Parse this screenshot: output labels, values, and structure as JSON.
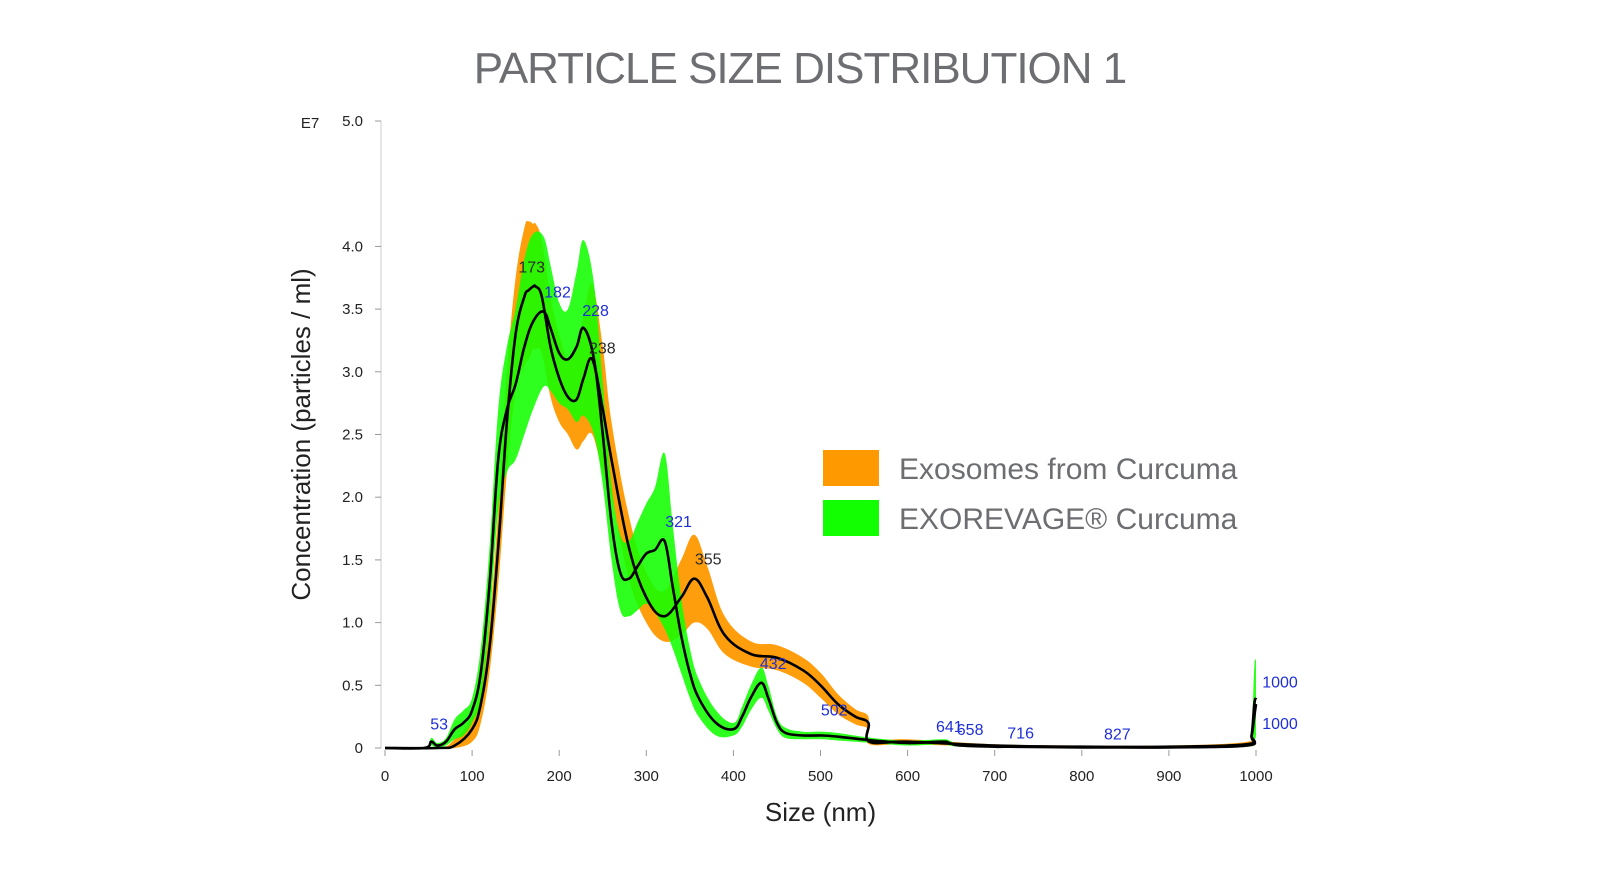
{
  "title": "PARTICLE SIZE DISTRIBUTION 1",
  "chart_data": {
    "type": "line",
    "title": "PARTICLE SIZE DISTRIBUTION 1",
    "xlabel": "Size (nm)",
    "ylabel": "Concentration (particles / ml)",
    "y_multiplier_label": "E7",
    "xlim": [
      0,
      1000
    ],
    "ylim": [
      0,
      5.0
    ],
    "x_ticks": [
      0,
      100,
      200,
      300,
      400,
      500,
      600,
      700,
      800,
      900,
      1000
    ],
    "y_ticks": [
      0,
      0.5,
      1.0,
      1.5,
      2.0,
      2.5,
      3.0,
      3.5,
      4.0,
      5.0
    ],
    "y_tick_labels": [
      "0",
      "0.5",
      "1.0",
      "1.5",
      "2.0",
      "2.5",
      "3.0",
      "3.5",
      "4.0",
      "5.0"
    ],
    "legend_position": "right",
    "series": [
      {
        "name": "Exosomes from Curcuma",
        "color": "#ff9900",
        "x": [
          0,
          60,
          80,
          100,
          110,
          120,
          130,
          140,
          150,
          160,
          165,
          170,
          173,
          180,
          190,
          200,
          210,
          220,
          228,
          238,
          250,
          260,
          280,
          300,
          320,
          340,
          355,
          370,
          390,
          420,
          450,
          480,
          500,
          520,
          540,
          555,
          556,
          600,
          700,
          800,
          900,
          990,
          995,
          998,
          1000
        ],
        "y": [
          0,
          0,
          0.02,
          0.15,
          0.35,
          0.8,
          1.6,
          2.6,
          3.3,
          3.6,
          3.65,
          3.68,
          3.68,
          3.6,
          3.2,
          2.95,
          2.8,
          2.78,
          2.95,
          3.1,
          2.7,
          2.3,
          1.6,
          1.2,
          1.05,
          1.2,
          1.35,
          1.2,
          0.9,
          0.75,
          0.72,
          0.62,
          0.5,
          0.35,
          0.25,
          0.2,
          0.05,
          0.05,
          0.02,
          0.01,
          0.01,
          0.03,
          0.1,
          0.25,
          0.35
        ],
        "band": [
          0,
          0,
          0.05,
          0.1,
          0.15,
          0.2,
          0.3,
          0.4,
          0.45,
          0.55,
          0.55,
          0.5,
          0.5,
          0.45,
          0.4,
          0.35,
          0.3,
          0.4,
          0.5,
          0.6,
          0.5,
          0.3,
          0.25,
          0.2,
          0.2,
          0.3,
          0.35,
          0.25,
          0.15,
          0.1,
          0.1,
          0.1,
          0.1,
          0.08,
          0.06,
          0.05,
          0.02,
          0.02,
          0.01,
          0.01,
          0.01,
          0.02,
          0.03,
          0.03,
          0.02
        ],
        "peak_labels": [
          {
            "x": 173,
            "label": "173"
          },
          {
            "x": 238,
            "label": "238"
          },
          {
            "x": 355,
            "label": "355"
          },
          {
            "x": 1000,
            "label": "1000"
          }
        ]
      },
      {
        "name": "EXOREVAGE® Curcuma",
        "color": "#11ff00",
        "x": [
          0,
          45,
          53,
          60,
          70,
          80,
          90,
          100,
          110,
          120,
          130,
          140,
          150,
          160,
          170,
          182,
          190,
          200,
          210,
          220,
          228,
          240,
          250,
          260,
          270,
          280,
          290,
          300,
          310,
          321,
          330,
          340,
          350,
          360,
          380,
          400,
          410,
          420,
          432,
          440,
          450,
          460,
          480,
          502,
          520,
          560,
          600,
          640,
          648,
          660,
          700,
          716,
          800,
          827,
          900,
          990,
          995,
          998,
          1000
        ],
        "y": [
          0,
          0,
          0.05,
          0.02,
          0.05,
          0.15,
          0.2,
          0.3,
          0.6,
          1.3,
          2.3,
          2.7,
          2.9,
          3.2,
          3.4,
          3.48,
          3.35,
          3.15,
          3.1,
          3.2,
          3.35,
          3.1,
          2.5,
          1.8,
          1.4,
          1.35,
          1.45,
          1.55,
          1.58,
          1.65,
          1.3,
          0.9,
          0.6,
          0.4,
          0.2,
          0.15,
          0.25,
          0.4,
          0.52,
          0.4,
          0.2,
          0.12,
          0.1,
          0.1,
          0.09,
          0.06,
          0.04,
          0.05,
          0.04,
          0.02,
          0.01,
          0.01,
          0.005,
          0.005,
          0.005,
          0.02,
          0.1,
          0.35,
          0.4
        ],
        "band": [
          0,
          0,
          0.03,
          0.02,
          0.03,
          0.08,
          0.1,
          0.1,
          0.2,
          0.3,
          0.4,
          0.5,
          0.6,
          0.7,
          0.7,
          0.6,
          0.5,
          0.4,
          0.4,
          0.6,
          0.7,
          0.6,
          0.4,
          0.3,
          0.3,
          0.3,
          0.35,
          0.4,
          0.5,
          0.7,
          0.5,
          0.3,
          0.2,
          0.15,
          0.1,
          0.05,
          0.08,
          0.1,
          0.12,
          0.1,
          0.05,
          0.04,
          0.03,
          0.03,
          0.03,
          0.02,
          0.02,
          0.02,
          0.02,
          0.01,
          0.005,
          0.005,
          0.003,
          0.003,
          0.003,
          0.01,
          0.05,
          0.3,
          0.3
        ],
        "peak_labels": [
          {
            "x": 53,
            "label": "53"
          },
          {
            "x": 182,
            "label": "182"
          },
          {
            "x": 228,
            "label": "228"
          },
          {
            "x": 321,
            "label": "321"
          },
          {
            "x": 432,
            "label": "432"
          },
          {
            "x": 502,
            "label": "502"
          },
          {
            "x": 641,
            "label": "641"
          },
          {
            "x": 658,
            "label": "658"
          },
          {
            "x": 716,
            "label": "716"
          },
          {
            "x": 827,
            "label": "827"
          },
          {
            "x": 1000,
            "label": "1000"
          }
        ]
      }
    ]
  }
}
